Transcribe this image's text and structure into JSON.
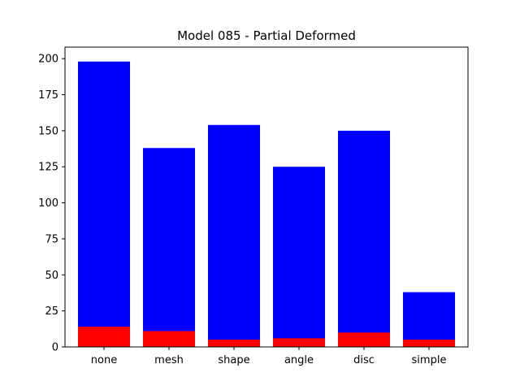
{
  "chart_data": {
    "type": "bar",
    "title": "Model 085 - Partial Deformed",
    "xlabel": "",
    "ylabel": "",
    "categories": [
      "none",
      "mesh",
      "shape",
      "angle",
      "disc",
      "simple"
    ],
    "series": [
      {
        "values": [
          198,
          138,
          154,
          125,
          150,
          38
        ],
        "color": "#0000ff"
      },
      {
        "values": [
          14,
          11,
          5,
          6,
          10,
          5
        ],
        "color": "#ff0000"
      }
    ],
    "ylim": [
      0,
      208
    ],
    "yticks": [
      0,
      25,
      50,
      75,
      100,
      125,
      150,
      175,
      200
    ],
    "grid": false,
    "legend": "none",
    "overlay": true
  }
}
